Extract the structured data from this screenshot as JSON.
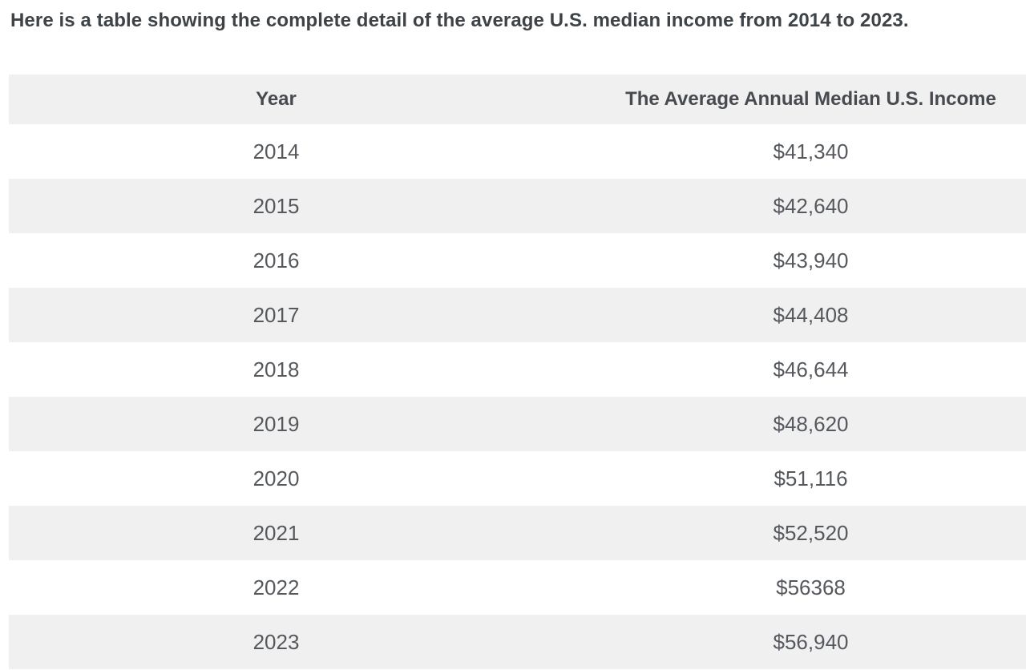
{
  "intro": {
    "text": "Here is a table showing the complete detail of the average U.S. median income from 2014 to 2023."
  },
  "table": {
    "columns": [
      "Year",
      "The Average Annual Median U.S. Income"
    ],
    "rows": [
      {
        "year": "2014",
        "income": "$41,340"
      },
      {
        "year": "2015",
        "income": "$42,640"
      },
      {
        "year": "2016",
        "income": "$43,940"
      },
      {
        "year": "2017",
        "income": "$44,408"
      },
      {
        "year": "2018",
        "income": "$46,644"
      },
      {
        "year": "2019",
        "income": "$48,620"
      },
      {
        "year": "2020",
        "income": "$51,116"
      },
      {
        "year": "2021",
        "income": "$52,520"
      },
      {
        "year": "2022",
        "income": "$56368"
      },
      {
        "year": "2023",
        "income": "$56,940"
      }
    ]
  },
  "colors": {
    "stripe_bg": "#f0f0f1",
    "header_bg": "#f0f0f1",
    "heading_text": "#3e4347",
    "header_text": "#474b50",
    "cell_text": "#55595e",
    "page_bg": "#ffffff"
  },
  "chart_data": {
    "type": "table",
    "title": "Here is a table showing the complete detail of the average U.S. median income from 2014 to 2023.",
    "columns": [
      "Year",
      "The Average Annual Median U.S. Income"
    ],
    "years": [
      2014,
      2015,
      2016,
      2017,
      2018,
      2019,
      2020,
      2021,
      2022,
      2023
    ],
    "values_usd": [
      41340,
      42640,
      43940,
      44408,
      46644,
      48620,
      51116,
      52520,
      56368,
      56940
    ],
    "layout": "striped rows, header and alternate rows shaded light gray, both columns center-aligned, table cropped at right viewport edge"
  }
}
